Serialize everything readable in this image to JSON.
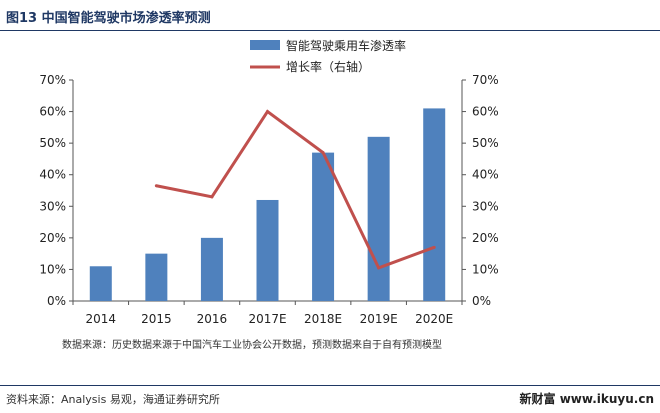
{
  "header": {
    "title": "图13 中国智能驾驶市场渗透率预测"
  },
  "chart_data": {
    "type": "bar",
    "categories": [
      "2014",
      "2015",
      "2016",
      "2017E",
      "2018E",
      "2019E",
      "2020E"
    ],
    "series": [
      {
        "name": "智能驾驶乘用车渗透率",
        "type": "bar",
        "axis": "left",
        "values": [
          11,
          15,
          20,
          32,
          47,
          52,
          61
        ]
      },
      {
        "name": "增长率（右轴）",
        "type": "line",
        "axis": "right",
        "values": [
          null,
          36.5,
          33,
          60,
          47,
          10.5,
          17
        ]
      }
    ],
    "y_left": {
      "ylim": [
        0,
        70
      ],
      "ticks": [
        "0%",
        "10%",
        "20%",
        "30%",
        "40%",
        "50%",
        "60%",
        "70%"
      ]
    },
    "y_right": {
      "ylim": [
        0,
        70
      ],
      "ticks": [
        "0%",
        "10%",
        "20%",
        "30%",
        "40%",
        "50%",
        "60%",
        "70%"
      ]
    },
    "legend_position": "top-center",
    "grid": false,
    "colors": {
      "bar": "#4f81bd",
      "line": "#c0504d",
      "axis": "#555555"
    }
  },
  "note": "数据来源：历史数据来源于中国汽车工业协会公开数据，预测数据来自于自有预测模型",
  "footer": {
    "source": "资料来源：Analysis 易观，海通证券研究所",
    "watermark": "新财富 www.ikuyu.cn"
  }
}
